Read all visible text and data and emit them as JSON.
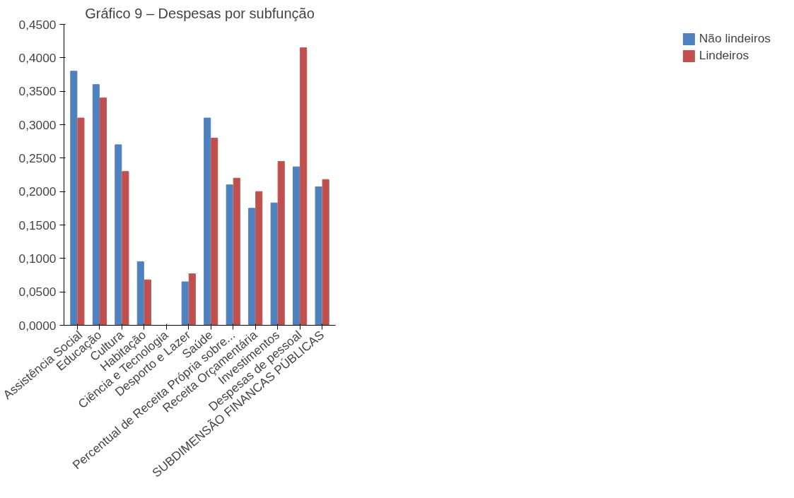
{
  "chart_data": {
    "type": "bar",
    "title": "Gráfico 9 – Despesas por subfunção",
    "categories": [
      "Assistência Social",
      "Educação",
      "Cultura",
      "Habitação",
      "Ciência e Tecnologia",
      "Desporto e Lazer",
      "Saúde",
      "Percentual de Receita Própria sobre...",
      "Receita Orçamentária",
      "Investimentos",
      "Despesas de pessoal",
      "SUBDIMENSÃO FINANCAS PÚBLICAS"
    ],
    "series": [
      {
        "name": "Não lindeiros",
        "color": "#4f81bd",
        "values": [
          0.38,
          0.36,
          0.27,
          0.095,
          0,
          0.065,
          0.31,
          0.21,
          0.175,
          0.183,
          0.237,
          0.207
        ]
      },
      {
        "name": "Lindeiros",
        "color": "#c0504d",
        "values": [
          0.31,
          0.34,
          0.23,
          0.068,
          0,
          0.077,
          0.28,
          0.22,
          0.2,
          0.245,
          0.415,
          0.218
        ]
      }
    ],
    "ylim": [
      0,
      0.45
    ],
    "yticks": [
      {
        "value": 0,
        "label": "0,0000"
      },
      {
        "value": 0.05,
        "label": "0,0500"
      },
      {
        "value": 0.1,
        "label": "0,1000"
      },
      {
        "value": 0.15,
        "label": "0,1500"
      },
      {
        "value": 0.2,
        "label": "0,2000"
      },
      {
        "value": 0.25,
        "label": "0,2500"
      },
      {
        "value": 0.3,
        "label": "0,3000"
      },
      {
        "value": 0.35,
        "label": "0,3500"
      },
      {
        "value": 0.4,
        "label": "0,4000"
      },
      {
        "value": 0.45,
        "label": "0,4500"
      }
    ],
    "grid": false,
    "legend": "right"
  }
}
